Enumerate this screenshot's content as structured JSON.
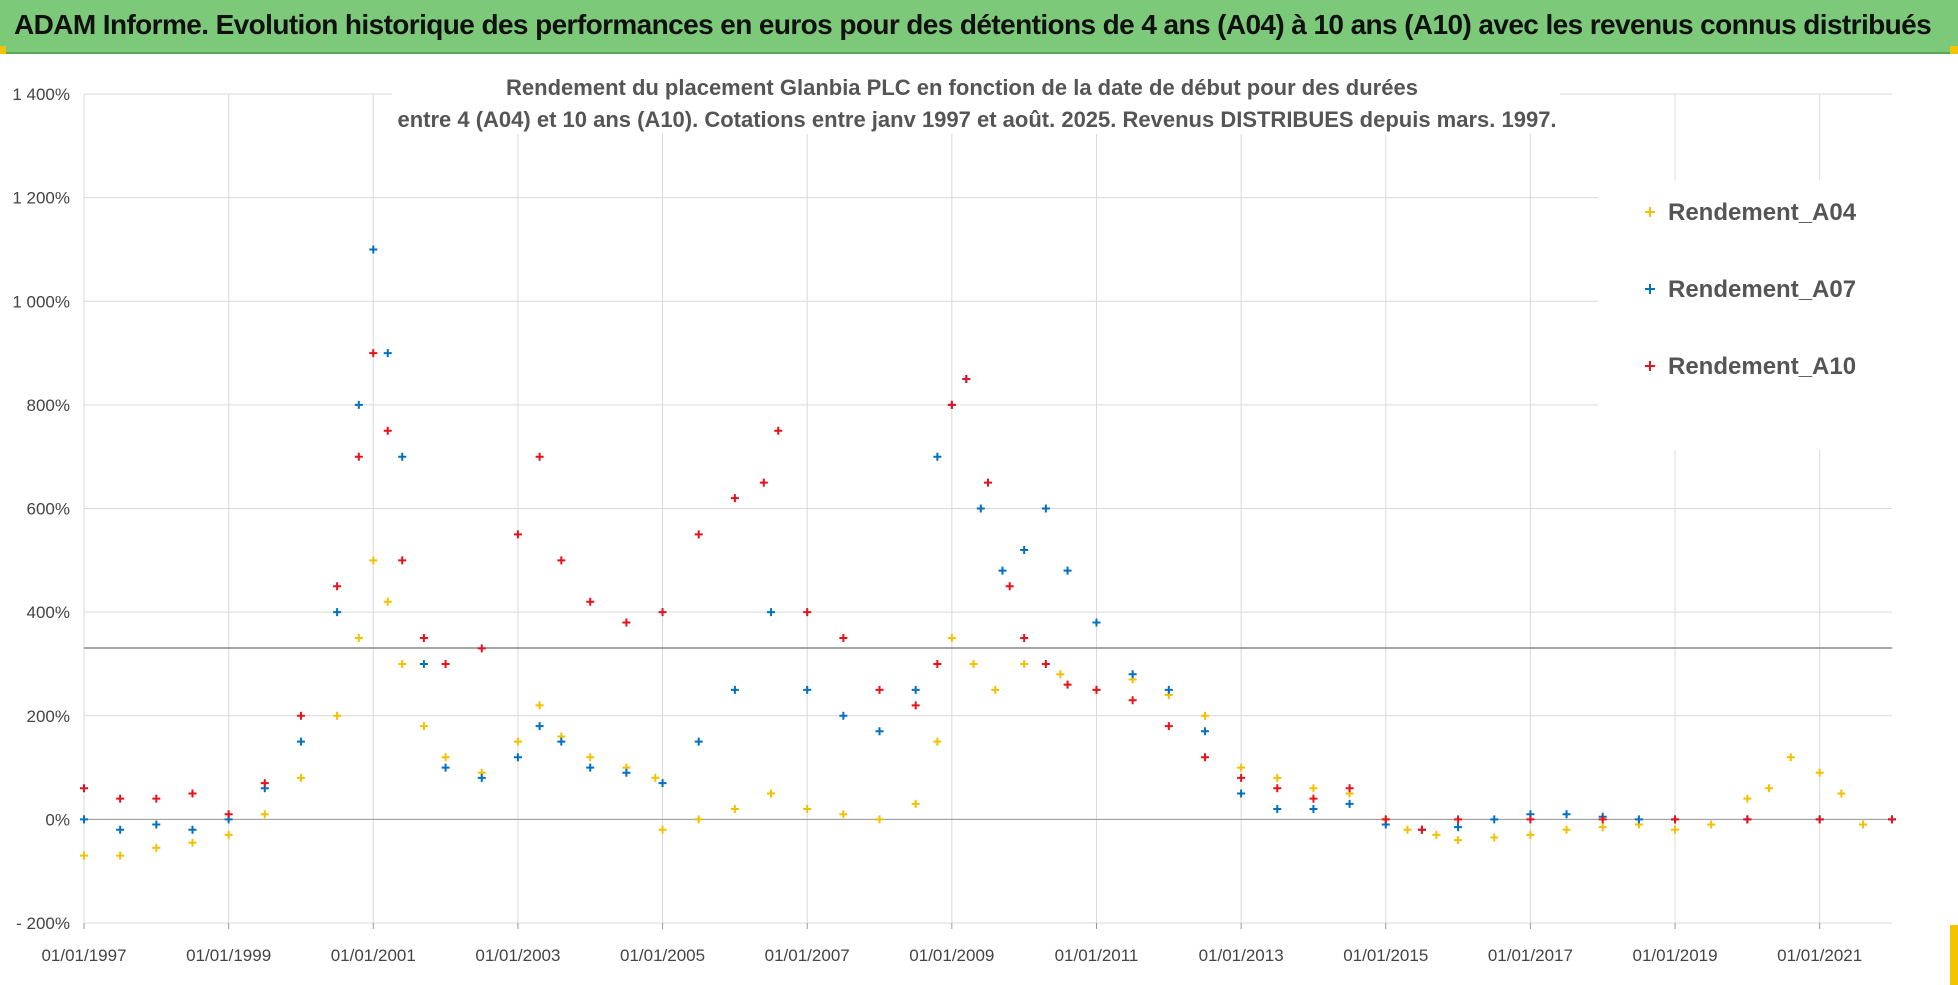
{
  "banner": {
    "text": "ADAM Informe. Evolution historique des performances en euros pour des détentions de 4 ans (A04) à 10 ans (A10) avec les revenus connus distribués"
  },
  "colors": {
    "banner_bg": "#7dc97a",
    "accent": "#f5c400",
    "A04": "#f5c000",
    "A07": "#0070c0",
    "A10": "#e8101a"
  },
  "chart_data": {
    "type": "scatter",
    "title": "Rendement du placement Glanbia PLC en fonction de la date de début pour des durées",
    "subtitle": "entre 4 (A04) et 10 ans (A10). Cotations entre janv 1997 et août. 2025. Revenus DISTRIBUES depuis mars. 1997.",
    "xlabel": "",
    "ylabel": "",
    "ylim": [
      -200,
      1400
    ],
    "xlim": [
      "1997-01-01",
      "2022-01-01"
    ],
    "y_ticks": [
      -200,
      0,
      200,
      400,
      600,
      800,
      1000,
      1200,
      1400
    ],
    "y_tick_labels": [
      "- 200%",
      "0%",
      "200%",
      "400%",
      "600%",
      "800%",
      "1 000%",
      "1 200%",
      "1 400%"
    ],
    "x_tick_labels": [
      "01/01/1997",
      "01/01/1999",
      "01/01/2001",
      "01/01/2003",
      "01/01/2005",
      "01/01/2007",
      "01/01/2009",
      "01/01/2011",
      "01/01/2013",
      "01/01/2015",
      "01/01/2017",
      "01/01/2019",
      "01/01/2021"
    ],
    "grid": true,
    "legend_position": "top-right",
    "series": [
      {
        "name": "Rendement_A04",
        "color": "#f5c000",
        "x": [
          1997.0,
          1997.5,
          1998.0,
          1998.5,
          1999.0,
          1999.5,
          2000.0,
          2000.5,
          2000.8,
          2001.0,
          2001.2,
          2001.4,
          2001.7,
          2002.0,
          2002.5,
          2003.0,
          2003.3,
          2003.6,
          2004.0,
          2004.5,
          2004.9,
          2005.0,
          2005.5,
          2006.0,
          2006.5,
          2007.0,
          2007.5,
          2008.0,
          2008.5,
          2008.8,
          2009.0,
          2009.3,
          2009.6,
          2010.0,
          2010.5,
          2011.0,
          2011.5,
          2012.0,
          2012.5,
          2013.0,
          2013.5,
          2014.0,
          2014.5,
          2015.0,
          2015.3,
          2015.7,
          2016.0,
          2016.5,
          2017.0,
          2017.5,
          2018.0,
          2018.5,
          2019.0,
          2019.5,
          2020.0,
          2020.3,
          2020.6,
          2021.0,
          2021.3,
          2021.6,
          2022.0
        ],
        "values": [
          -70,
          -70,
          -55,
          -45,
          -30,
          10,
          80,
          200,
          350,
          500,
          420,
          300,
          180,
          120,
          90,
          150,
          220,
          160,
          120,
          100,
          80,
          -20,
          0,
          20,
          50,
          20,
          10,
          0,
          30,
          150,
          350,
          300,
          250,
          300,
          280,
          250,
          270,
          240,
          200,
          100,
          80,
          60,
          50,
          0,
          -20,
          -30,
          -40,
          -35,
          -30,
          -20,
          -15,
          -10,
          -20,
          -10,
          40,
          60,
          120,
          90,
          50,
          -10,
          0
        ]
      },
      {
        "name": "Rendement_A07",
        "color": "#0070c0",
        "x": [
          1997.0,
          1997.5,
          1998.0,
          1998.5,
          1999.0,
          1999.5,
          2000.0,
          2000.5,
          2000.8,
          2001.0,
          2001.2,
          2001.4,
          2001.7,
          2002.0,
          2002.5,
          2003.0,
          2003.3,
          2003.6,
          2004.0,
          2004.5,
          2005.0,
          2005.5,
          2006.0,
          2006.5,
          2007.0,
          2007.5,
          2008.0,
          2008.5,
          2008.8,
          2009.0,
          2009.2,
          2009.4,
          2009.7,
          2010.0,
          2010.3,
          2010.6,
          2011.0,
          2011.5,
          2012.0,
          2012.5,
          2013.0,
          2013.5,
          2014.0,
          2014.5,
          2015.0,
          2015.5,
          2016.0,
          2016.5,
          2017.0,
          2017.5,
          2018.0,
          2018.5,
          2019.0,
          2020.0,
          2021.0,
          2022.0
        ],
        "values": [
          0,
          -20,
          -10,
          -20,
          0,
          60,
          150,
          400,
          800,
          1100,
          900,
          700,
          300,
          100,
          80,
          120,
          180,
          150,
          100,
          90,
          70,
          150,
          250,
          400,
          250,
          200,
          170,
          250,
          700,
          800,
          850,
          600,
          480,
          520,
          600,
          480,
          380,
          280,
          250,
          170,
          50,
          20,
          20,
          30,
          -10,
          -20,
          -15,
          0,
          10,
          10,
          5,
          0,
          0,
          0,
          0,
          0
        ]
      },
      {
        "name": "Rendement_A10",
        "color": "#e8101a",
        "x": [
          1997.0,
          1997.5,
          1998.0,
          1998.5,
          1999.0,
          1999.5,
          2000.0,
          2000.5,
          2000.8,
          2001.0,
          2001.2,
          2001.4,
          2001.7,
          2002.0,
          2002.5,
          2003.0,
          2003.3,
          2003.6,
          2004.0,
          2004.5,
          2005.0,
          2005.5,
          2006.0,
          2006.4,
          2006.6,
          2007.0,
          2007.5,
          2008.0,
          2008.5,
          2008.8,
          2009.0,
          2009.2,
          2009.5,
          2009.8,
          2010.0,
          2010.3,
          2010.6,
          2011.0,
          2011.5,
          2012.0,
          2012.5,
          2013.0,
          2013.5,
          2014.0,
          2014.5,
          2015.0,
          2015.5,
          2016.0,
          2017.0,
          2018.0,
          2019.0,
          2020.0,
          2021.0,
          2022.0
        ],
        "values": [
          60,
          40,
          40,
          50,
          10,
          70,
          200,
          450,
          700,
          900,
          750,
          500,
          350,
          300,
          330,
          550,
          700,
          500,
          420,
          380,
          400,
          550,
          620,
          650,
          750,
          400,
          350,
          250,
          220,
          300,
          800,
          850,
          650,
          450,
          350,
          300,
          260,
          250,
          230,
          180,
          120,
          80,
          60,
          40,
          60,
          0,
          -20,
          0,
          0,
          0,
          0,
          0,
          0,
          0
        ]
      }
    ]
  }
}
